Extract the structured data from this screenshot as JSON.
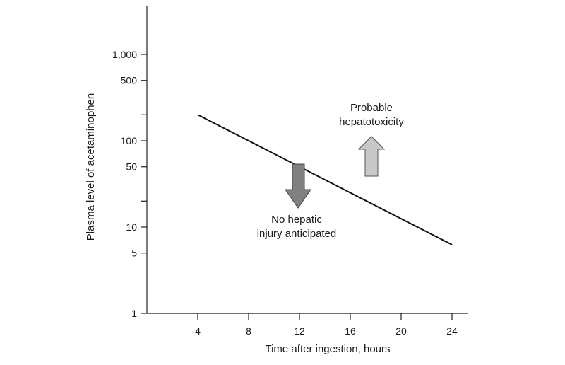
{
  "chart_data": {
    "type": "line",
    "xlabel": "Time after ingestion, hours",
    "ylabel": "Plasma level of acetaminophen",
    "x_ticks": [
      4,
      8,
      12,
      16,
      20,
      24
    ],
    "y_tick_labels": [
      {
        "value": 1,
        "label": "1"
      },
      {
        "value": 5,
        "label": "5"
      },
      {
        "value": 10,
        "label": "10"
      },
      {
        "value": 50,
        "label": "50"
      },
      {
        "value": 100,
        "label": "100"
      },
      {
        "value": 500,
        "label": "500"
      },
      {
        "value": 1000,
        "label": "1,000"
      }
    ],
    "y_unlabeled_ticks": [
      20,
      200
    ],
    "xlim": [
      0,
      25
    ],
    "ylim": [
      1,
      1500
    ],
    "y_scale": "log",
    "series": [
      {
        "x": [
          4,
          24
        ],
        "y": [
          200,
          6.25
        ]
      }
    ],
    "annotations": [
      {
        "lines": [
          "Probable",
          "hepatotoxicity"
        ],
        "arrow": "up",
        "arrow_color": "#c8c8c8"
      },
      {
        "lines": [
          "No hepatic",
          "injury anticipated"
        ],
        "arrow": "down",
        "arrow_color": "#808080"
      }
    ]
  }
}
